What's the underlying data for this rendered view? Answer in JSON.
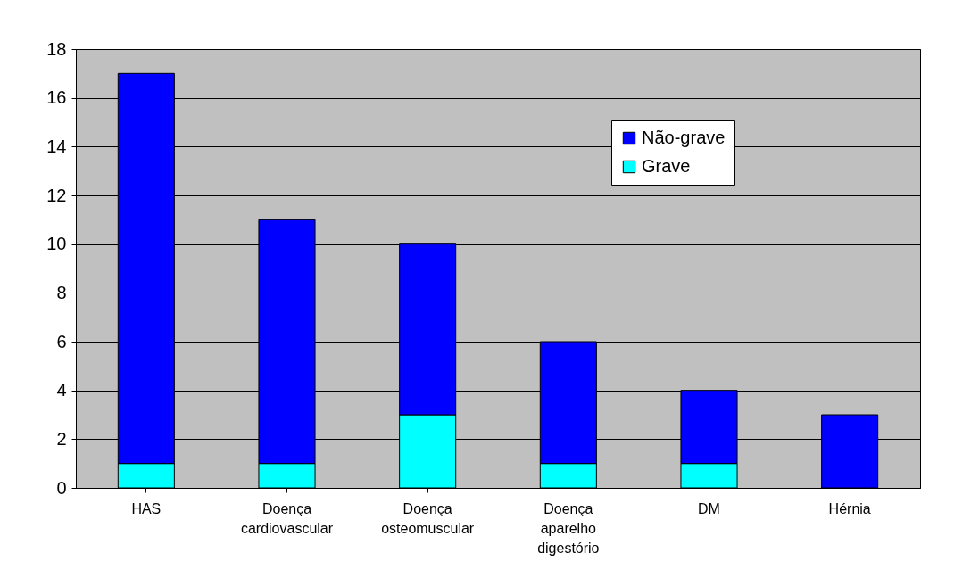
{
  "chart_data": {
    "type": "bar",
    "stacked": true,
    "categories": [
      "HAS",
      "Doença cardiovascular",
      "Doença osteomuscular",
      "Doença aparelho digestório",
      "DM",
      "Hérnia"
    ],
    "series": [
      {
        "name": "Grave",
        "color": "#00ffff",
        "values": [
          1,
          1,
          3,
          1,
          1,
          null
        ]
      },
      {
        "name": "Não-grave",
        "color": "#0000ff",
        "values": [
          16,
          10,
          7,
          5,
          3,
          3
        ]
      }
    ],
    "ylim": [
      0,
      18
    ],
    "yticks": [
      0,
      2,
      4,
      6,
      8,
      10,
      12,
      14,
      16,
      18
    ],
    "grid": "y",
    "legend": "top right"
  }
}
